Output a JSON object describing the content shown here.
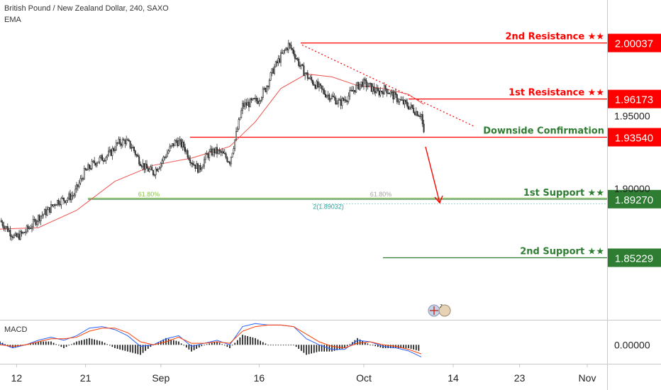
{
  "header": {
    "symbol_line": "British Pound / New Zealand Dollar, 240, SAXO",
    "indicator": "EMA",
    "macd_label": "MACD"
  },
  "chart_data": {
    "type": "candlestick",
    "symbol": "British Pound / New Zealand Dollar",
    "interval": "240",
    "source": "SAXO",
    "ylim": [
      1.81,
      2.03
    ],
    "y_ticks": [
      "1.95000",
      "1.90000"
    ],
    "x_ticks": [
      "12",
      "21",
      "Sep",
      "16",
      "Oct",
      "14",
      "23",
      "Nov"
    ],
    "levels": [
      {
        "name": "2nd Resistance ★★",
        "value": "2.00037",
        "color": "#ff0000"
      },
      {
        "name": "1st Resistance ★★",
        "value": "1.96173",
        "color": "#ff0000"
      },
      {
        "name": "Downside Confirmation",
        "value": "1.93540",
        "color": "#ff0000",
        "label_color": "#2e7d32"
      },
      {
        "name": "1st Support ★★",
        "value": "1.89270",
        "color": "#2e7d32"
      },
      {
        "name": "2nd Support ★★",
        "value": "1.85229",
        "color": "#2e7d32"
      }
    ],
    "annotations": [
      "61.80%",
      "61.80%",
      "2(1.89032)"
    ],
    "close_path": [
      [
        0,
        1.878
      ],
      [
        6,
        1.872
      ],
      [
        12,
        1.866
      ],
      [
        18,
        1.869
      ],
      [
        24,
        1.874
      ],
      [
        30,
        1.88
      ],
      [
        38,
        1.885
      ],
      [
        44,
        1.891
      ],
      [
        52,
        1.893
      ],
      [
        58,
        1.896
      ],
      [
        66,
        1.911
      ],
      [
        74,
        1.918
      ],
      [
        80,
        1.921
      ],
      [
        86,
        1.924
      ],
      [
        92,
        1.931
      ],
      [
        98,
        1.933
      ],
      [
        104,
        1.928
      ],
      [
        108,
        1.921
      ],
      [
        114,
        1.914
      ],
      [
        120,
        1.911
      ],
      [
        126,
        1.918
      ],
      [
        132,
        1.926
      ],
      [
        138,
        1.933
      ],
      [
        144,
        1.929
      ],
      [
        150,
        1.919
      ],
      [
        156,
        1.913
      ],
      [
        162,
        1.923
      ],
      [
        168,
        1.926
      ],
      [
        174,
        1.924
      ],
      [
        180,
        1.919
      ],
      [
        186,
        1.941
      ],
      [
        190,
        1.957
      ],
      [
        196,
        1.959
      ],
      [
        202,
        1.961
      ],
      [
        208,
        1.969
      ],
      [
        214,
        1.982
      ],
      [
        220,
        1.991
      ],
      [
        226,
        1.999
      ],
      [
        230,
        1.994
      ],
      [
        236,
        1.983
      ],
      [
        242,
        1.976
      ],
      [
        248,
        1.971
      ],
      [
        254,
        1.966
      ],
      [
        260,
        1.963
      ],
      [
        266,
        1.959
      ],
      [
        272,
        1.963
      ],
      [
        278,
        1.969
      ],
      [
        284,
        1.973
      ],
      [
        290,
        1.97
      ],
      [
        296,
        1.966
      ],
      [
        302,
        1.969
      ],
      [
        308,
        1.964
      ],
      [
        314,
        1.96
      ],
      [
        320,
        1.957
      ],
      [
        326,
        1.953
      ],
      [
        330,
        1.951
      ],
      [
        332,
        1.937
      ]
    ],
    "ema_path": [
      [
        0,
        1.872
      ],
      [
        30,
        1.873
      ],
      [
        60,
        1.885
      ],
      [
        90,
        1.905
      ],
      [
        120,
        1.916
      ],
      [
        150,
        1.921
      ],
      [
        180,
        1.929
      ],
      [
        200,
        1.946
      ],
      [
        220,
        1.969
      ],
      [
        240,
        1.979
      ],
      [
        260,
        1.977
      ],
      [
        280,
        1.971
      ],
      [
        300,
        1.969
      ],
      [
        320,
        1.965
      ],
      [
        332,
        1.958
      ]
    ],
    "macd_ylim": [
      -0.012,
      0.016
    ],
    "macd_ticks": [
      "0.00000"
    ],
    "macd_line": [
      [
        0,
        0.001
      ],
      [
        10,
        -0.002
      ],
      [
        20,
        0.0
      ],
      [
        30,
        0.003
      ],
      [
        40,
        0.005
      ],
      [
        50,
        0.003
      ],
      [
        60,
        0.006
      ],
      [
        70,
        0.011
      ],
      [
        80,
        0.012
      ],
      [
        90,
        0.01
      ],
      [
        100,
        0.006
      ],
      [
        110,
        -0.001
      ],
      [
        120,
        0.0
      ],
      [
        130,
        0.004
      ],
      [
        140,
        0.006
      ],
      [
        150,
        -0.001
      ],
      [
        160,
        0.001
      ],
      [
        170,
        0.003
      ],
      [
        180,
        0.0
      ],
      [
        190,
        0.012
      ],
      [
        200,
        0.014
      ],
      [
        210,
        0.013
      ],
      [
        220,
        0.013
      ],
      [
        230,
        0.012
      ],
      [
        240,
        0.004
      ],
      [
        250,
        0.0
      ],
      [
        260,
        -0.003
      ],
      [
        270,
        -0.003
      ],
      [
        280,
        0.003
      ],
      [
        290,
        0.002
      ],
      [
        300,
        -0.001
      ],
      [
        310,
        -0.002
      ],
      [
        320,
        -0.004
      ],
      [
        330,
        -0.008
      ]
    ],
    "signal_line": [
      [
        0,
        0.0
      ],
      [
        10,
        -0.001
      ],
      [
        20,
        0.0
      ],
      [
        30,
        0.002
      ],
      [
        40,
        0.004
      ],
      [
        50,
        0.004
      ],
      [
        60,
        0.005
      ],
      [
        70,
        0.009
      ],
      [
        80,
        0.011
      ],
      [
        90,
        0.011
      ],
      [
        100,
        0.008
      ],
      [
        110,
        0.002
      ],
      [
        120,
        0.0
      ],
      [
        130,
        0.002
      ],
      [
        140,
        0.005
      ],
      [
        150,
        0.001
      ],
      [
        160,
        0.001
      ],
      [
        170,
        0.002
      ],
      [
        180,
        0.001
      ],
      [
        190,
        0.009
      ],
      [
        200,
        0.012
      ],
      [
        210,
        0.013
      ],
      [
        220,
        0.013
      ],
      [
        230,
        0.012
      ],
      [
        240,
        0.007
      ],
      [
        250,
        0.002
      ],
      [
        260,
        -0.001
      ],
      [
        270,
        -0.002
      ],
      [
        280,
        0.001
      ],
      [
        290,
        0.002
      ],
      [
        300,
        0.0
      ],
      [
        310,
        -0.001
      ],
      [
        320,
        -0.003
      ],
      [
        330,
        -0.006
      ]
    ]
  }
}
